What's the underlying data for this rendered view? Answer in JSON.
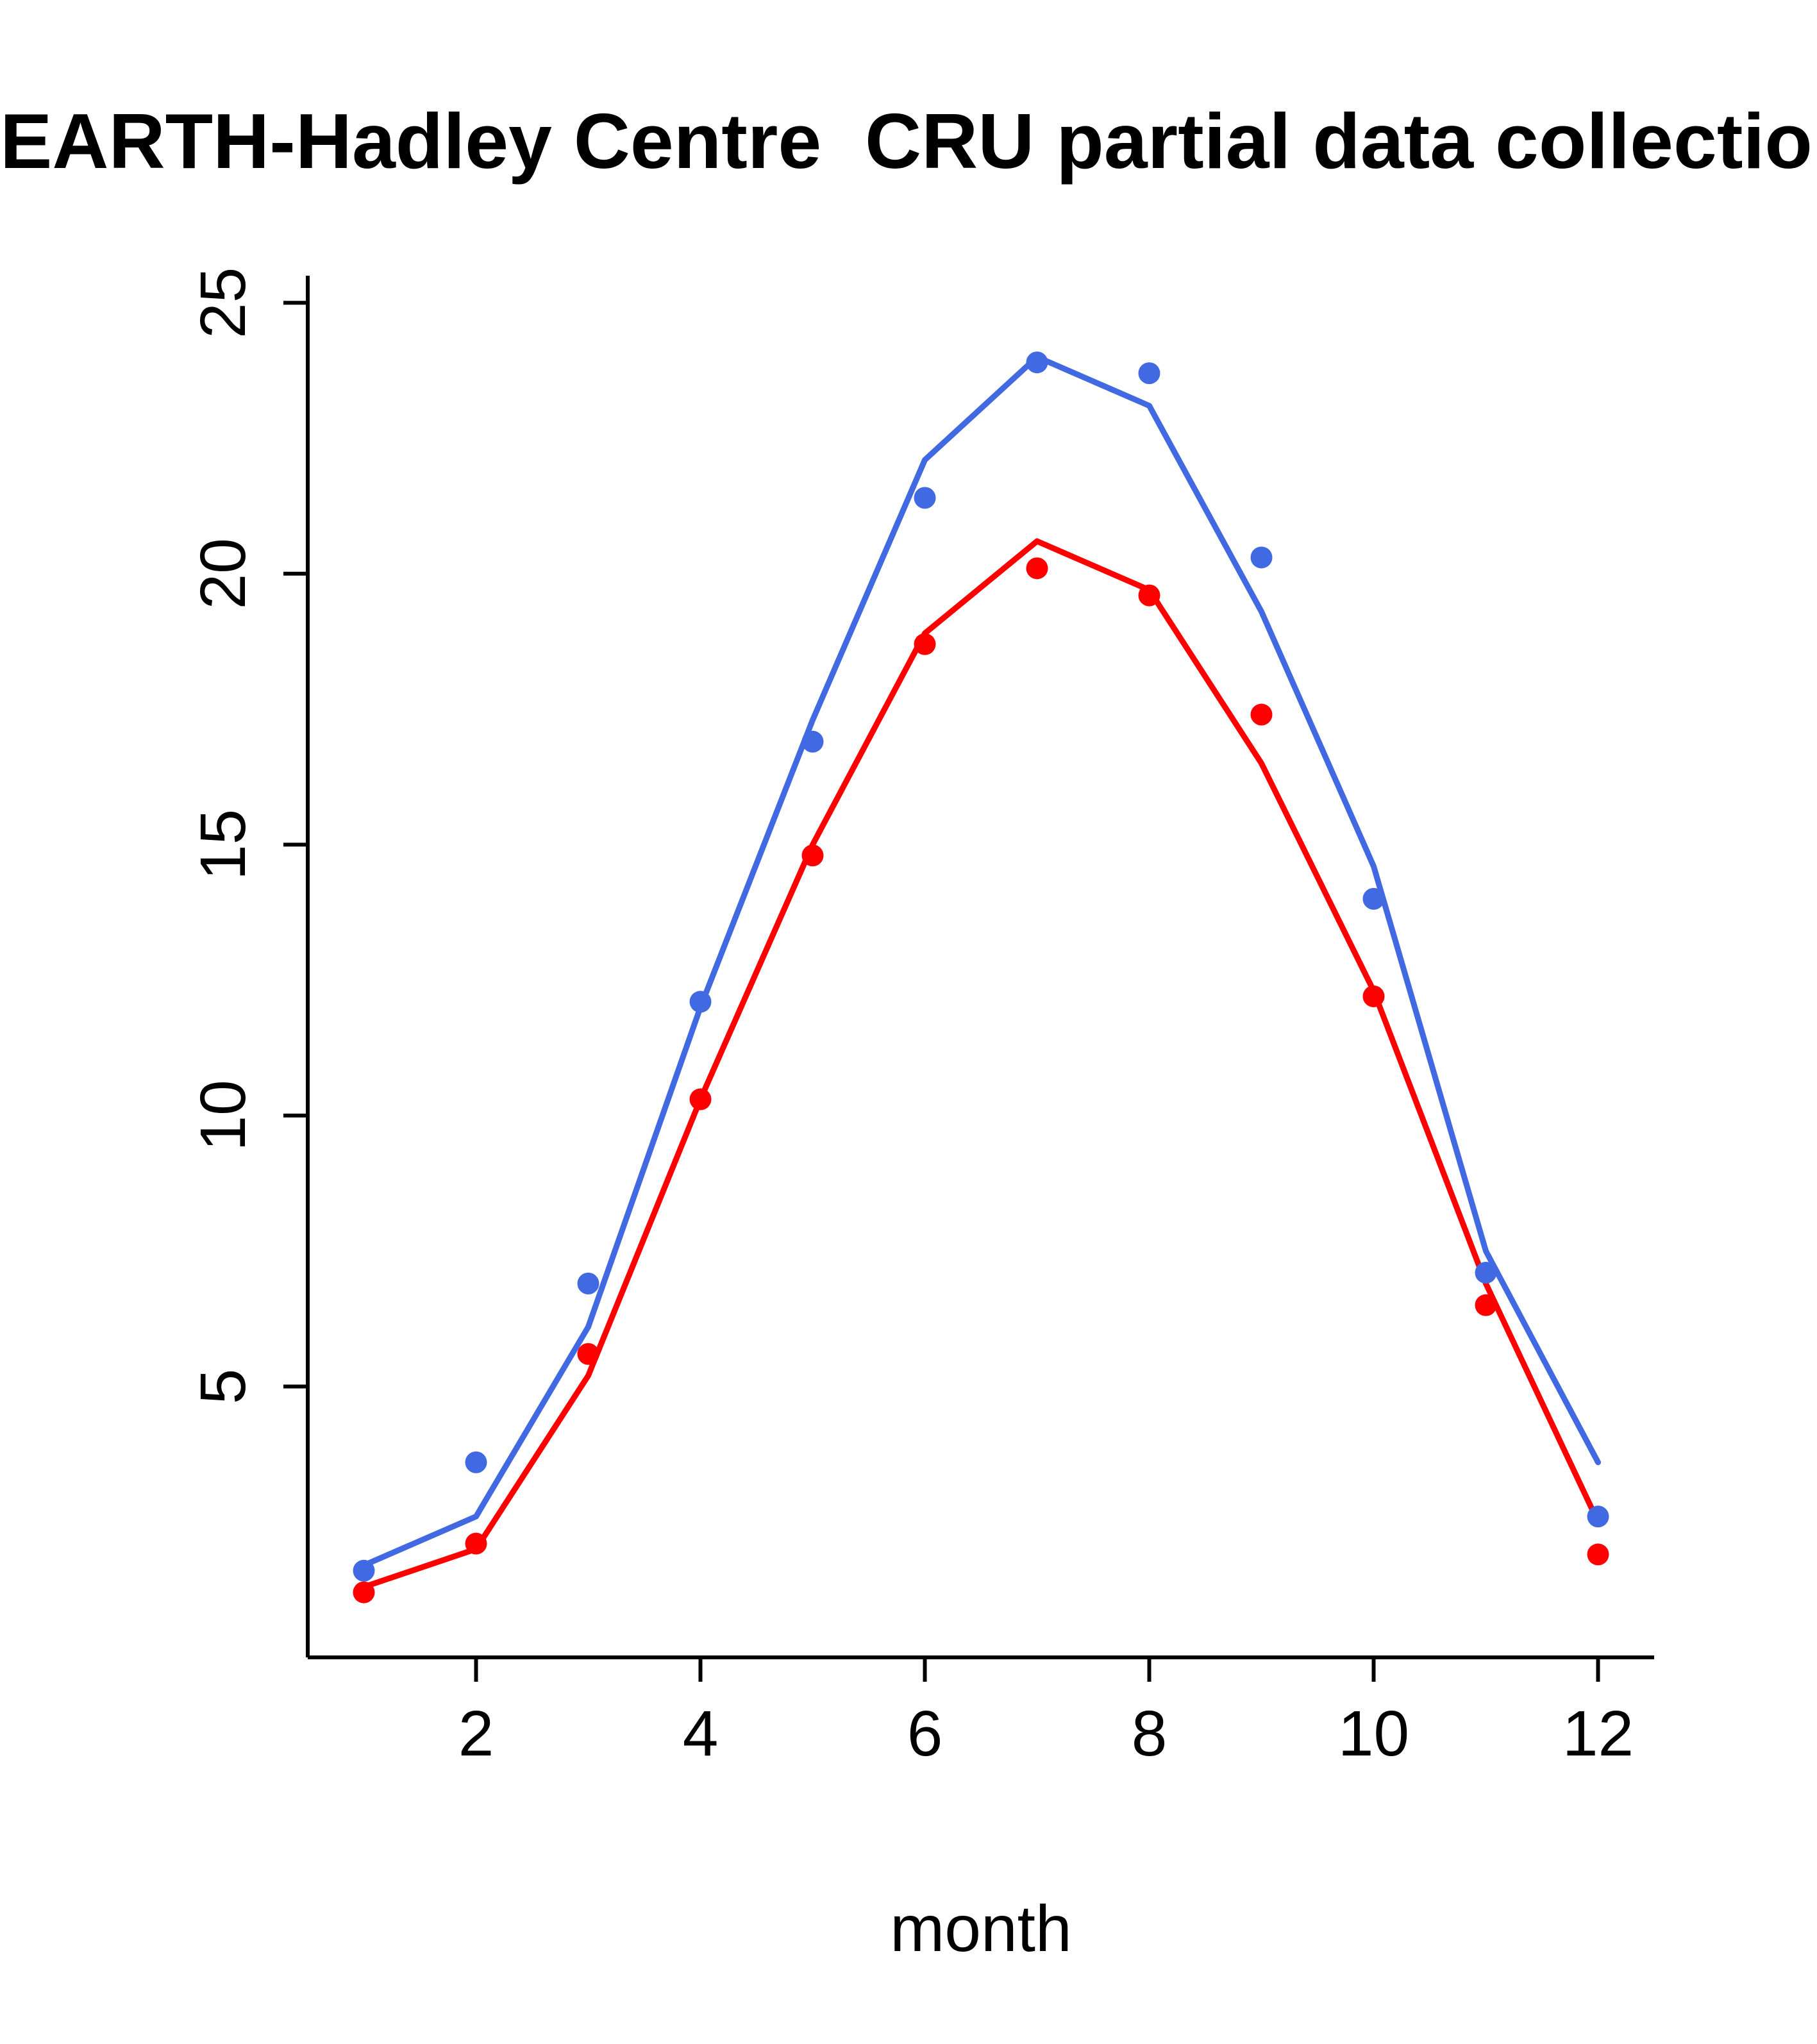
{
  "title": "EARTH-Hadley Centre  CRU partial data collection",
  "x_axis_label": "month",
  "chart_data": {
    "type": "line",
    "title": "EARTH-Hadley Centre  CRU partial data collection",
    "xlabel": "month",
    "ylabel": "",
    "x": [
      1,
      2,
      3,
      4,
      5,
      6,
      7,
      8,
      9,
      10,
      11,
      12
    ],
    "xticks": [
      2,
      4,
      6,
      8,
      10,
      12
    ],
    "yticks": [
      5,
      10,
      15,
      20,
      25
    ],
    "xlim": [
      0.5,
      12.5
    ],
    "ylim": [
      0,
      25.5
    ],
    "grid": false,
    "legend": "none",
    "colors": {
      "blue": "#4169E1",
      "red": "#FF0000"
    },
    "series": [
      {
        "name": "model-line-blue",
        "draw": "line",
        "color": "#4169E1",
        "values": [
          1.7,
          2.6,
          6.1,
          12.0,
          17.3,
          22.1,
          24.0,
          23.1,
          19.3,
          14.6,
          7.5,
          3.6
        ]
      },
      {
        "name": "obs-line-red",
        "draw": "line",
        "color": "#FF0000",
        "values": [
          1.3,
          2.0,
          5.2,
          10.3,
          15.0,
          18.9,
          20.6,
          19.7,
          16.5,
          12.3,
          6.9,
          2.5
        ]
      },
      {
        "name": "model-points-blue",
        "draw": "scatter",
        "color": "#4169E1",
        "values": [
          1.6,
          3.6,
          6.9,
          12.1,
          16.9,
          21.4,
          23.9,
          23.7,
          20.3,
          14.0,
          7.1,
          2.6
        ]
      },
      {
        "name": "obs-points-red",
        "draw": "scatter",
        "color": "#FF0000",
        "values": [
          1.2,
          2.1,
          5.6,
          10.3,
          14.8,
          18.7,
          20.1,
          19.6,
          17.4,
          12.2,
          6.5,
          1.9
        ]
      }
    ]
  }
}
